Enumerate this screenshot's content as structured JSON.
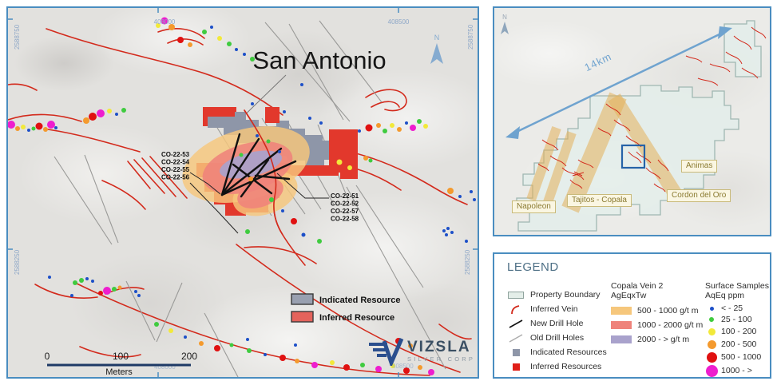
{
  "colors": {
    "frame_blue": "#4A8DC0",
    "vein_red": "#D32A1C",
    "indicated_gray": "#8E96A8",
    "inferred_red": "#E2382C",
    "grade_500_1000": "#F6C77C",
    "grade_1000_2000": "#EF837B",
    "grade_2000_plus": "#A9A2CC",
    "samples": {
      "bl": "#1D50C8",
      "gr": "#3FCB3F",
      "yl": "#F2E93A",
      "or": "#F49A2E",
      "rd": "#E01111",
      "mg": "#EE1ECE"
    }
  },
  "main_map": {
    "title": "San Antonio",
    "north_label": "N",
    "coords": {
      "top_left": "408000",
      "top_right": "408500",
      "left_top": "2588750",
      "left_bottom": "2588250",
      "right_top": "2588750",
      "right_bottom": "2588250",
      "bottom_left": "408000",
      "bottom_right": "408500"
    },
    "drill_labels_left": [
      "CO-22-53",
      "CO-22-54",
      "CO-22-55",
      "CO-22-56"
    ],
    "drill_labels_right": [
      "CO-22-51",
      "CO-22-52",
      "CO-22-57",
      "CO-22-58"
    ],
    "mini_legend": {
      "indicated": "Indicated Resource",
      "inferred": "Inferred Resource"
    },
    "scale_bar": {
      "t0": "0",
      "t100": "100",
      "t200": "200",
      "unit": "Meters"
    },
    "logo": {
      "name": "VIZSLA",
      "subtitle": "SILVER CORP"
    },
    "sample_points": [
      [
        4,
        146,
        5,
        "mg"
      ],
      [
        12,
        151,
        3,
        "or"
      ],
      [
        19,
        149,
        3,
        "yl"
      ],
      [
        26,
        153,
        2,
        "bl"
      ],
      [
        32,
        151,
        2.5,
        "gr"
      ],
      [
        39,
        148,
        4.5,
        "rd"
      ],
      [
        47,
        152,
        3,
        "or"
      ],
      [
        54,
        146,
        5,
        "mg"
      ],
      [
        60,
        150,
        2,
        "bl"
      ],
      [
        98,
        141,
        4,
        "or"
      ],
      [
        106,
        136,
        5,
        "rd"
      ],
      [
        116,
        132,
        5,
        "mg"
      ],
      [
        127,
        129,
        3,
        "yl"
      ],
      [
        136,
        133,
        2,
        "bl"
      ],
      [
        145,
        128,
        3,
        "gr"
      ],
      [
        188,
        22,
        3,
        "yl"
      ],
      [
        196,
        16,
        4.5,
        "mg"
      ],
      [
        205,
        24,
        4,
        "or"
      ],
      [
        216,
        40,
        4,
        "rd"
      ],
      [
        228,
        46,
        3,
        "or"
      ],
      [
        246,
        30,
        3,
        "gr"
      ],
      [
        255,
        24,
        2,
        "bl"
      ],
      [
        265,
        38,
        3,
        "yl"
      ],
      [
        277,
        45,
        3,
        "gr"
      ],
      [
        286,
        52,
        2,
        "bl"
      ],
      [
        296,
        58,
        2,
        "bl"
      ],
      [
        306,
        64,
        3,
        "gr"
      ],
      [
        306,
        120,
        2,
        "bl"
      ],
      [
        346,
        130,
        2,
        "bl"
      ],
      [
        378,
        138,
        2,
        "bl"
      ],
      [
        392,
        144,
        2,
        "bl"
      ],
      [
        368,
        96,
        2,
        "bl"
      ],
      [
        440,
        154,
        2,
        "bl"
      ],
      [
        452,
        150,
        4.5,
        "rd"
      ],
      [
        464,
        147,
        3,
        "or"
      ],
      [
        472,
        154,
        3,
        "gr"
      ],
      [
        481,
        147,
        3,
        "yl"
      ],
      [
        490,
        152,
        3,
        "or"
      ],
      [
        499,
        144,
        2,
        "bl"
      ],
      [
        507,
        150,
        4,
        "mg"
      ],
      [
        515,
        142,
        3,
        "gr"
      ],
      [
        523,
        148,
        3,
        "yl"
      ],
      [
        554,
        229,
        4,
        "or"
      ],
      [
        566,
        236,
        2,
        "bl"
      ],
      [
        580,
        230,
        2,
        "bl"
      ],
      [
        584,
        240,
        2,
        "bl"
      ],
      [
        546,
        279,
        2,
        "bl"
      ],
      [
        551,
        276,
        2,
        "bl"
      ],
      [
        556,
        281,
        2,
        "bl"
      ],
      [
        549,
        284,
        2,
        "bl"
      ],
      [
        574,
        292,
        2,
        "bl"
      ],
      [
        186,
        396,
        3,
        "gr"
      ],
      [
        204,
        404,
        3,
        "yl"
      ],
      [
        222,
        412,
        2,
        "bl"
      ],
      [
        242,
        420,
        3,
        "or"
      ],
      [
        262,
        426,
        4,
        "rd"
      ],
      [
        280,
        422,
        2.5,
        "gr"
      ],
      [
        302,
        429,
        3,
        "gr"
      ],
      [
        322,
        434,
        2,
        "bl"
      ],
      [
        344,
        438,
        4,
        "rd"
      ],
      [
        362,
        442,
        3,
        "or"
      ],
      [
        384,
        447,
        4,
        "mg"
      ],
      [
        406,
        444,
        3,
        "yl"
      ],
      [
        424,
        450,
        4,
        "rd"
      ],
      [
        444,
        447,
        3,
        "gr"
      ],
      [
        464,
        452,
        4,
        "mg"
      ],
      [
        482,
        448,
        3,
        "yl"
      ],
      [
        499,
        454,
        4,
        "rd"
      ],
      [
        516,
        450,
        3,
        "or"
      ],
      [
        530,
        456,
        4,
        "mg"
      ],
      [
        360,
        422,
        2,
        "bl"
      ],
      [
        300,
        415,
        2,
        "bl"
      ],
      [
        489,
        417,
        4,
        "rd"
      ],
      [
        504,
        423,
        3,
        "or"
      ],
      [
        52,
        337,
        2,
        "bl"
      ],
      [
        84,
        344,
        3,
        "gr"
      ],
      [
        92,
        341,
        3,
        "gr"
      ],
      [
        99,
        339,
        2,
        "bl"
      ],
      [
        106,
        342,
        2,
        "bl"
      ],
      [
        80,
        360,
        2,
        "bl"
      ],
      [
        160,
        355,
        2,
        "bl"
      ],
      [
        164,
        360,
        2,
        "bl"
      ],
      [
        124,
        354,
        5,
        "mg"
      ],
      [
        133,
        352,
        3,
        "gr"
      ],
      [
        116,
        357,
        3,
        "rd"
      ],
      [
        140,
        350,
        2.5,
        "or"
      ],
      [
        312,
        160,
        2,
        "bl"
      ],
      [
        326,
        167,
        2.5,
        "gr"
      ],
      [
        340,
        180,
        2,
        "bl"
      ],
      [
        292,
        184,
        2.5,
        "gr"
      ],
      [
        304,
        214,
        3,
        "or"
      ],
      [
        330,
        240,
        3,
        "gr"
      ],
      [
        344,
        254,
        2,
        "bl"
      ],
      [
        358,
        267,
        4,
        "rd"
      ],
      [
        370,
        284,
        2.5,
        "bl"
      ],
      [
        390,
        292,
        3,
        "gr"
      ],
      [
        300,
        280,
        3,
        "gr"
      ],
      [
        415,
        193,
        3.5,
        "yl"
      ],
      [
        448,
        188,
        3,
        "or"
      ],
      [
        454,
        191,
        2.5,
        "gr"
      ],
      [
        428,
        200,
        3,
        "yl"
      ]
    ]
  },
  "inset_map": {
    "north_label": "N",
    "distance_label": "14km",
    "area_labels": [
      "Napoleon",
      "Tajitos - Copala",
      "Cordon del Oro",
      "Animas"
    ]
  },
  "legend": {
    "title": "LEGEND",
    "symbols": [
      {
        "label": "Property Boundary"
      },
      {
        "label": "Inferred Vein"
      },
      {
        "label": "New Drill Hole"
      },
      {
        "label": "Old Drill Holes"
      },
      {
        "label": "Indicated Resources"
      },
      {
        "label": "Inferred Resources"
      }
    ],
    "vein_grades": {
      "title_line1": "Copala Vein 2",
      "title_line2": "AgEqxTw",
      "entries": [
        "500 - 1000 g/t m",
        "1000 - 2000 g/t m",
        "2000 - > g/t m"
      ]
    },
    "surface_samples": {
      "title_line1": "Surface Samples",
      "title_line2": "AqEq ppm",
      "entries": [
        "< - 25",
        "25 - 100",
        "100 - 200",
        "200 - 500",
        "500 - 1000",
        "1000 - >"
      ]
    }
  }
}
